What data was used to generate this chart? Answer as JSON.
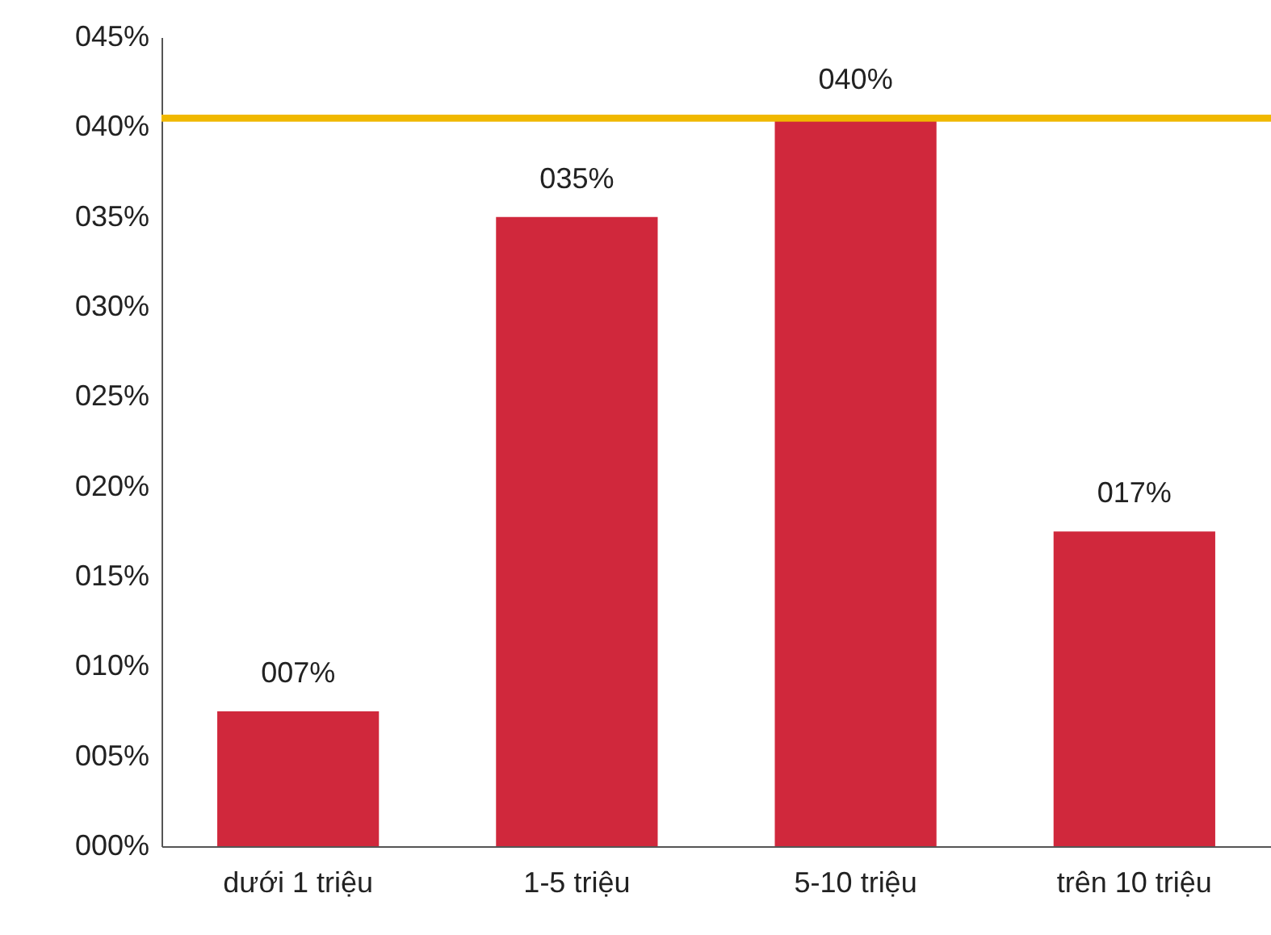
{
  "chart_data": {
    "type": "bar",
    "categories": [
      "dưới 1 triệu",
      "1-5 triệu",
      "5-10 triệu",
      "trên 10 triệu"
    ],
    "values": [
      7.5,
      35,
      40.5,
      17.5
    ],
    "value_labels": [
      "007%",
      "035%",
      "040%",
      "017%"
    ],
    "color": "#d0283c",
    "ylim": [
      0,
      45
    ],
    "yticks": [
      {
        "value": 0,
        "label": "000%"
      },
      {
        "value": 5,
        "label": "005%"
      },
      {
        "value": 10,
        "label": "010%"
      },
      {
        "value": 15,
        "label": "015%"
      },
      {
        "value": 20,
        "label": "020%"
      },
      {
        "value": 25,
        "label": "025%"
      },
      {
        "value": 30,
        "label": "030%"
      },
      {
        "value": 35,
        "label": "035%"
      },
      {
        "value": 40,
        "label": "040%"
      },
      {
        "value": 45,
        "label": "045%"
      }
    ],
    "ref_lines": [
      {
        "axis": "y",
        "value": 40.5,
        "color": "#f0b800"
      }
    ],
    "grid": false
  }
}
